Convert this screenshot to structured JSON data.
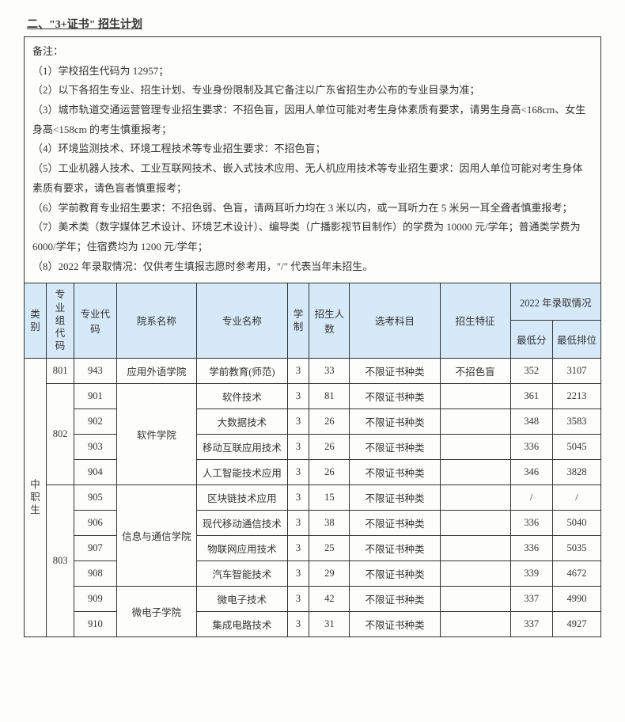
{
  "title": "二、\"3+证书\" 招生计划",
  "notes_label": "备注：",
  "notes": [
    "（1）学校招生代码为 12957；",
    "（2）以下各招生专业、招生计划、专业身份限制及其它备注以广东省招生办公布的专业目录为准；",
    "（3）城市轨道交通运营管理专业招生要求：不招色盲，因用人单位可能对考生身体素质有要求，请男生身高<168cm、女生身高<158cm 的考生慎重报考；",
    "（4）环境监测技术、环境工程技术等专业招生要求：不招色盲；",
    "（5）工业机器人技术、工业互联网技术、嵌入式技术应用、无人机应用技术等专业招生要求：因用人单位可能对考生身体素质有要求，请色盲者慎重报考；",
    "（6）学前教育专业招生要求：不招色弱、色盲，请两耳听力均在 3 米以内，或一耳听力在 5 米另一耳全聋者慎重报考；",
    "（7）美术类（数字媒体艺术设计、环境艺术设计）、编导类（广播影视节目制作）的学费为 10000 元/学年；普通类学费为 6000/学年；住宿费均为 1200 元/学年；",
    "（8）2022 年录取情况：仅供考生填报志愿时参考用，\"/\" 代表当年未招生。"
  ],
  "headers": {
    "category": "类别",
    "group_code": "专业组代码",
    "major_code": "专业代码",
    "faculty": "院系名称",
    "major_name": "专业名称",
    "years": "学制",
    "enroll": "招生人数",
    "subject": "选考科目",
    "feature": "招生特征",
    "adm_2022": "2022 年录取情况",
    "min_score": "最低分",
    "min_rank": "最低排位"
  },
  "category_label": "中职生",
  "rows": [
    {
      "group": "801",
      "code": "943",
      "faculty": "应用外语学院",
      "major": "学前教育(师范)",
      "years": "3",
      "enroll": "33",
      "subject": "不限证书种类",
      "feature": "不招色盲",
      "score": "352",
      "rank": "3107"
    },
    {
      "group": "802",
      "code": "901",
      "faculty": "软件学院",
      "major": "软件技术",
      "years": "3",
      "enroll": "81",
      "subject": "不限证书种类",
      "feature": "",
      "score": "361",
      "rank": "2213"
    },
    {
      "group": "802",
      "code": "902",
      "faculty": "软件学院",
      "major": "大数据技术",
      "years": "3",
      "enroll": "26",
      "subject": "不限证书种类",
      "feature": "",
      "score": "348",
      "rank": "3583"
    },
    {
      "group": "802",
      "code": "903",
      "faculty": "软件学院",
      "major": "移动互联应用技术",
      "years": "3",
      "enroll": "26",
      "subject": "不限证书种类",
      "feature": "",
      "score": "336",
      "rank": "5045"
    },
    {
      "group": "802",
      "code": "904",
      "faculty": "软件学院",
      "major": "人工智能技术应用",
      "years": "3",
      "enroll": "26",
      "subject": "不限证书种类",
      "feature": "",
      "score": "346",
      "rank": "3828"
    },
    {
      "group": "803",
      "code": "905",
      "faculty": "信息与通信学院",
      "major": "区块链技术应用",
      "years": "3",
      "enroll": "15",
      "subject": "不限证书种类",
      "feature": "",
      "score": "/",
      "rank": "/"
    },
    {
      "group": "803",
      "code": "906",
      "faculty": "信息与通信学院",
      "major": "现代移动通信技术",
      "years": "3",
      "enroll": "38",
      "subject": "不限证书种类",
      "feature": "",
      "score": "336",
      "rank": "5040"
    },
    {
      "group": "803",
      "code": "907",
      "faculty": "信息与通信学院",
      "major": "物联网应用技术",
      "years": "3",
      "enroll": "25",
      "subject": "不限证书种类",
      "feature": "",
      "score": "336",
      "rank": "5035"
    },
    {
      "group": "803",
      "code": "908",
      "faculty": "信息与通信学院",
      "major": "汽车智能技术",
      "years": "3",
      "enroll": "29",
      "subject": "不限证书种类",
      "feature": "",
      "score": "339",
      "rank": "4672"
    },
    {
      "group": "803",
      "code": "909",
      "faculty": "微电子学院",
      "major": "微电子技术",
      "years": "3",
      "enroll": "42",
      "subject": "不限证书种类",
      "feature": "",
      "score": "337",
      "rank": "4990"
    },
    {
      "group": "803",
      "code": "910",
      "faculty": "微电子学院",
      "major": "集成电路技术",
      "years": "3",
      "enroll": "31",
      "subject": "不限证书种类",
      "feature": "",
      "score": "337",
      "rank": "4927"
    }
  ],
  "colors": {
    "header_bg": "#d6e9f8",
    "border": "#333333",
    "bg": "#fdfdfc"
  }
}
